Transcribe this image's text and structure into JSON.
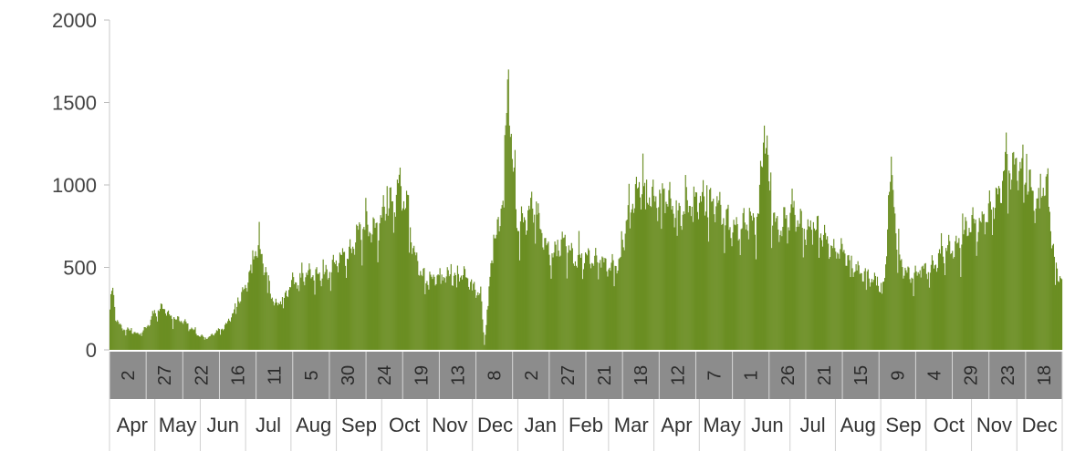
{
  "chart_data": {
    "type": "bar",
    "title": "",
    "xlabel": "",
    "ylabel": "",
    "ylim": [
      0,
      2000
    ],
    "y_ticks": [
      "0",
      "500",
      "1000",
      "1500",
      "2000"
    ],
    "grid": false,
    "legend": "none",
    "bar_color": "#6b8e23",
    "day_band_color": "#8c8c8c",
    "day_labels": [
      "2",
      "27",
      "22",
      "16",
      "11",
      "5",
      "30",
      "24",
      "19",
      "13",
      "8",
      "2",
      "27",
      "21",
      "18",
      "12",
      "7",
      "1",
      "26",
      "21",
      "15",
      "9",
      "4",
      "29",
      "23",
      "18"
    ],
    "month_labels": [
      "Apr",
      "May",
      "Jun",
      "Jul",
      "Aug",
      "Sep",
      "Oct",
      "Nov",
      "Dec",
      "Jan",
      "Feb",
      "Mar",
      "Apr",
      "May",
      "Jun",
      "Jul",
      "Aug",
      "Sep",
      "Oct",
      "Nov",
      "Dec"
    ],
    "series_anchor_points": [
      [
        0,
        260
      ],
      [
        3,
        360
      ],
      [
        6,
        200
      ],
      [
        12,
        140
      ],
      [
        20,
        120
      ],
      [
        30,
        90
      ],
      [
        38,
        130
      ],
      [
        48,
        220
      ],
      [
        58,
        250
      ],
      [
        66,
        200
      ],
      [
        76,
        180
      ],
      [
        86,
        140
      ],
      [
        96,
        90
      ],
      [
        106,
        70
      ],
      [
        118,
        120
      ],
      [
        126,
        160
      ],
      [
        136,
        250
      ],
      [
        146,
        380
      ],
      [
        156,
        620
      ],
      [
        163,
        560
      ],
      [
        170,
        430
      ],
      [
        178,
        280
      ],
      [
        188,
        300
      ],
      [
        198,
        420
      ],
      [
        210,
        460
      ],
      [
        222,
        440
      ],
      [
        234,
        480
      ],
      [
        246,
        520
      ],
      [
        258,
        600
      ],
      [
        266,
        700
      ],
      [
        276,
        720
      ],
      [
        286,
        760
      ],
      [
        296,
        830
      ],
      [
        306,
        880
      ],
      [
        312,
        1050
      ],
      [
        320,
        880
      ],
      [
        328,
        560
      ],
      [
        336,
        470
      ],
      [
        346,
        420
      ],
      [
        356,
        440
      ],
      [
        366,
        460
      ],
      [
        376,
        460
      ],
      [
        386,
        420
      ],
      [
        394,
        380
      ],
      [
        400,
        350
      ],
      [
        404,
        30
      ],
      [
        408,
        300
      ],
      [
        414,
        640
      ],
      [
        420,
        760
      ],
      [
        426,
        1200
      ],
      [
        430,
        1700
      ],
      [
        434,
        1100
      ],
      [
        440,
        720
      ],
      [
        448,
        820
      ],
      [
        456,
        900
      ],
      [
        462,
        760
      ],
      [
        470,
        620
      ],
      [
        480,
        600
      ],
      [
        490,
        640
      ],
      [
        500,
        560
      ],
      [
        510,
        580
      ],
      [
        520,
        520
      ],
      [
        530,
        560
      ],
      [
        540,
        500
      ],
      [
        550,
        500
      ],
      [
        560,
        920
      ],
      [
        570,
        940
      ],
      [
        580,
        960
      ],
      [
        590,
        940
      ],
      [
        600,
        880
      ],
      [
        610,
        860
      ],
      [
        620,
        860
      ],
      [
        630,
        880
      ],
      [
        640,
        940
      ],
      [
        650,
        880
      ],
      [
        660,
        820
      ],
      [
        670,
        760
      ],
      [
        680,
        720
      ],
      [
        690,
        760
      ],
      [
        700,
        860
      ],
      [
        706,
        1360
      ],
      [
        712,
        900
      ],
      [
        720,
        740
      ],
      [
        730,
        820
      ],
      [
        740,
        780
      ],
      [
        750,
        760
      ],
      [
        760,
        720
      ],
      [
        770,
        680
      ],
      [
        780,
        640
      ],
      [
        790,
        580
      ],
      [
        800,
        520
      ],
      [
        810,
        480
      ],
      [
        820,
        420
      ],
      [
        830,
        400
      ],
      [
        836,
        420
      ],
      [
        840,
        920
      ],
      [
        844,
        1060
      ],
      [
        850,
        560
      ],
      [
        860,
        480
      ],
      [
        870,
        440
      ],
      [
        880,
        480
      ],
      [
        890,
        540
      ],
      [
        900,
        580
      ],
      [
        910,
        620
      ],
      [
        920,
        700
      ],
      [
        930,
        740
      ],
      [
        940,
        780
      ],
      [
        950,
        860
      ],
      [
        960,
        900
      ],
      [
        966,
        1200
      ],
      [
        972,
        1140
      ],
      [
        980,
        1080
      ],
      [
        986,
        1060
      ],
      [
        994,
        1000
      ],
      [
        1000,
        900
      ],
      [
        1004,
        1020
      ],
      [
        1012,
        900
      ],
      [
        1020,
        500
      ],
      [
        1027,
        460
      ]
    ]
  }
}
